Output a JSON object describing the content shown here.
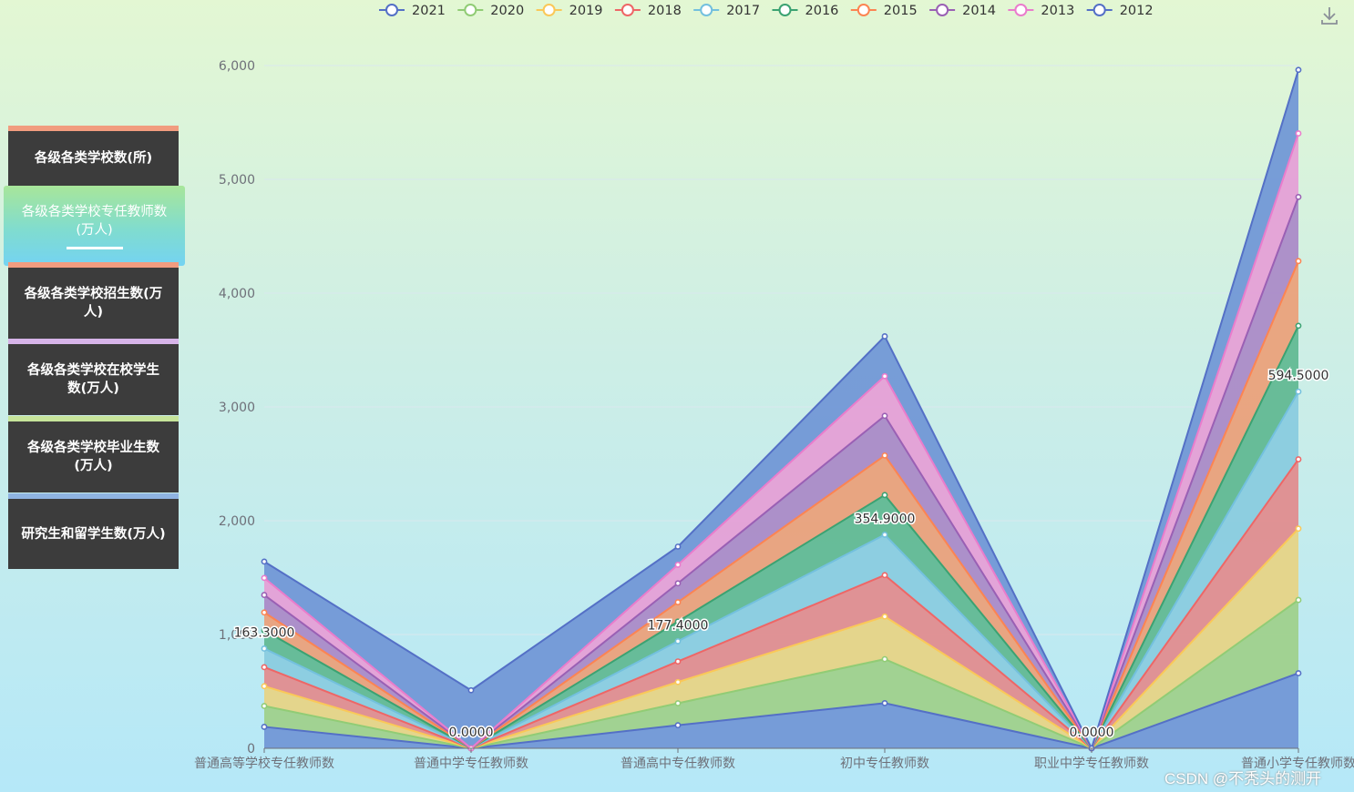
{
  "sidebar": {
    "items": [
      {
        "label": "各级各类学校数(所)",
        "strip": "#f19c7f",
        "active": false
      },
      {
        "label": "各级各类学校专任教师数(万人)",
        "strip": "#b0e6a0",
        "active": true
      },
      {
        "label": "各级各类学校招生数(万人)",
        "strip": "#f19c7f",
        "active": false
      },
      {
        "label": "各级各类学校在校学生数(万人)",
        "strip": "#d6b4e8",
        "active": false
      },
      {
        "label": "各级各类学校毕业生数(万人)",
        "strip": "#c6e49a",
        "active": false
      },
      {
        "label": "研究生和留学生数(万人)",
        "strip": "#8fb4e2",
        "active": false
      }
    ]
  },
  "toolbar": {
    "download_icon": "download-icon"
  },
  "watermark": "CSDN @不秃头的测开",
  "chart_data": {
    "type": "area",
    "stacked": true,
    "title": "",
    "xlabel": "",
    "ylabel": "",
    "ylim": [
      0,
      6000
    ],
    "yticks": [
      0,
      1000,
      2000,
      3000,
      4000,
      5000,
      6000
    ],
    "ytick_labels": [
      "0",
      "1,000",
      "2,000",
      "3,000",
      "4,000",
      "5,000",
      "6,000"
    ],
    "grid": true,
    "legend_position": "top-center",
    "categories": [
      "普通高等学校专任教师数",
      "普通中学专任教师数",
      "普通高中专任教师数",
      "初中专任教师数",
      "职业中学专任教师数",
      "普通小学专任教师数"
    ],
    "series": [
      {
        "name": "2021",
        "color": "#5470c6",
        "fill": "#7298d6",
        "values": [
          188.5,
          0,
          202.8,
          397.1,
          0,
          660.1
        ]
      },
      {
        "name": "2020",
        "color": "#91cc75",
        "fill": "#9fd18c",
        "values": [
          183.3,
          0,
          193.3,
          386.1,
          0,
          643.4
        ]
      },
      {
        "name": "2019",
        "color": "#fac858",
        "fill": "#e6d486",
        "values": [
          174.0,
          0,
          185.9,
          374.7,
          0,
          626.9
        ]
      },
      {
        "name": "2018",
        "color": "#ee6666",
        "fill": "#e08d8f",
        "values": [
          167.3,
          0,
          181.3,
          363.9,
          0,
          609.2
        ]
      },
      {
        "name": "2017",
        "color": "#73c0de",
        "fill": "#8accdf",
        "values": [
          163.3,
          0,
          177.4,
          354.9,
          0,
          594.5
        ]
      },
      {
        "name": "2016",
        "color": "#3ba272",
        "fill": "#62b994",
        "values": [
          160.2,
          0,
          173.3,
          348.8,
          0,
          578.9
        ]
      },
      {
        "name": "2015",
        "color": "#fc8452",
        "fill": "#eaa17b",
        "values": [
          157.3,
          0,
          169.5,
          347.6,
          0,
          568.5
        ]
      },
      {
        "name": "2014",
        "color": "#9a60b4",
        "fill": "#ab8bc7",
        "values": [
          153.5,
          0,
          166.3,
          348.8,
          0,
          563.4
        ]
      },
      {
        "name": "2013",
        "color": "#ea7ccc",
        "fill": "#e5a0d6",
        "values": [
          149.7,
          0,
          162.9,
          348.1,
          0,
          558.5
        ]
      },
      {
        "name": "2012",
        "color": "#5470c6",
        "fill": "#7298d6",
        "values": [
          144.0,
          510,
          159.5,
          350.4,
          0,
          558.6
        ]
      }
    ],
    "data_labels": [
      {
        "category_index": 0,
        "series": "2017",
        "text": "163.3000"
      },
      {
        "category_index": 1,
        "series": "2017",
        "text": "0.0000"
      },
      {
        "category_index": 2,
        "series": "2017",
        "text": "177.4000"
      },
      {
        "category_index": 3,
        "series": "2017",
        "text": "354.9000"
      },
      {
        "category_index": 4,
        "series": "2017",
        "text": "0.0000"
      },
      {
        "category_index": 5,
        "series": "2017",
        "text": "594.5000"
      }
    ]
  }
}
